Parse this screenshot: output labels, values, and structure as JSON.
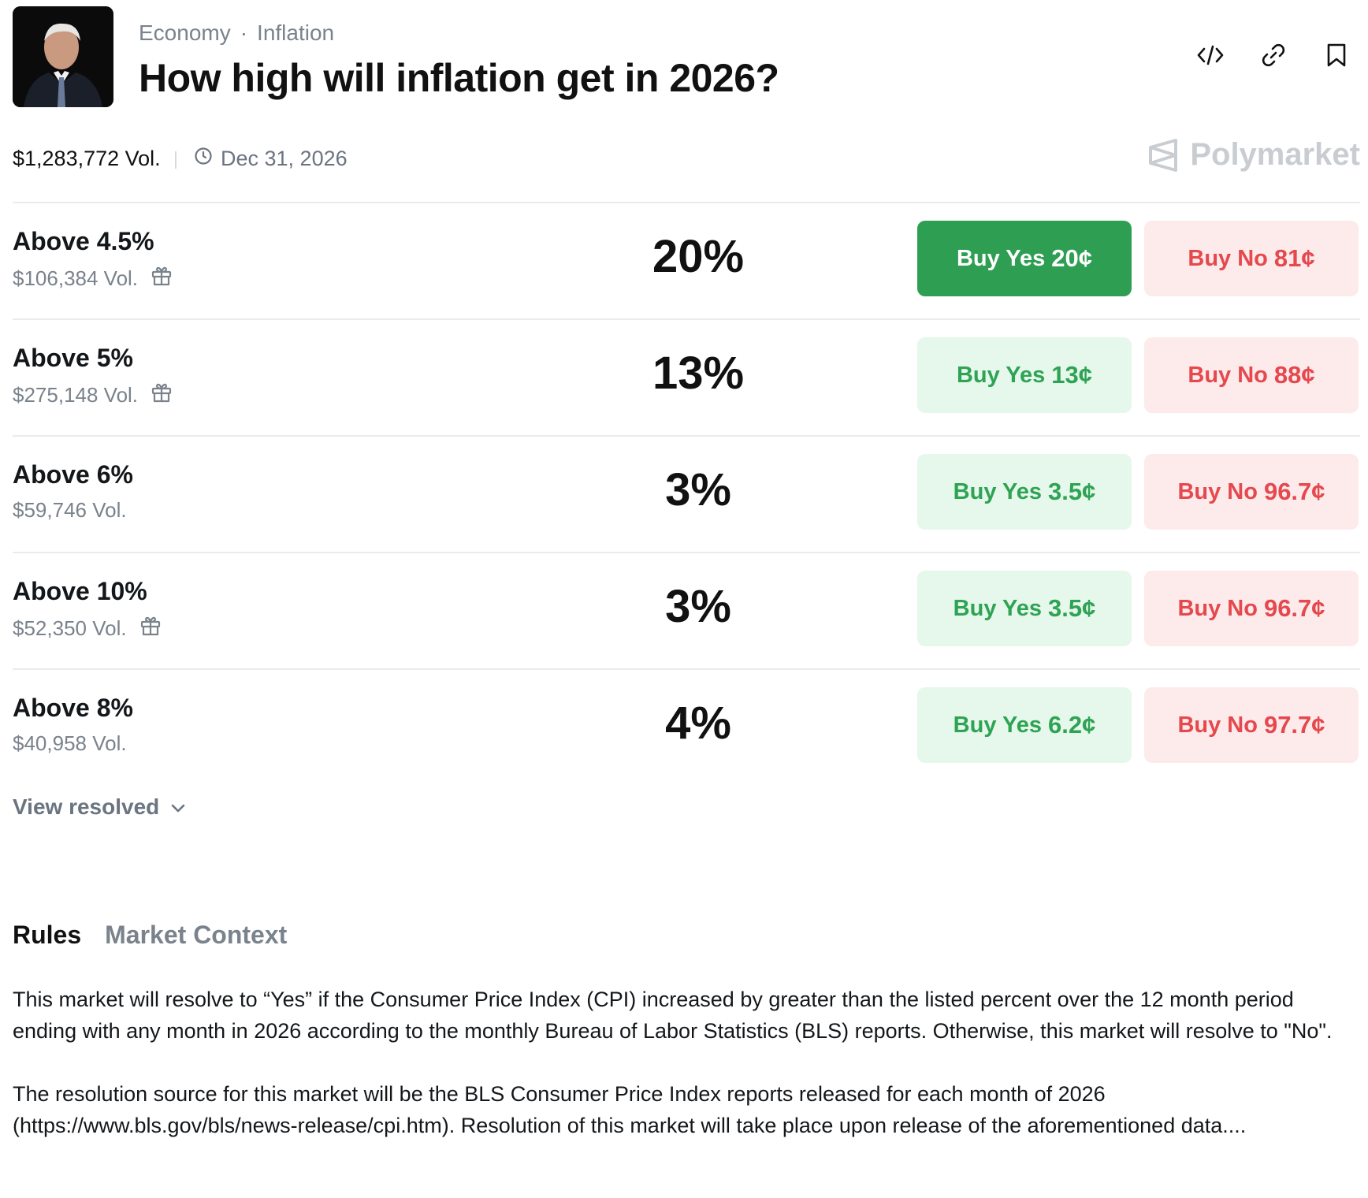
{
  "breadcrumb": {
    "category": "Economy",
    "separator": "·",
    "subcategory": "Inflation"
  },
  "title": "How high will inflation get in 2026?",
  "meta": {
    "volume": "$1,283,772 Vol.",
    "end_date": "Dec 31, 2026",
    "brand": "Polymarket"
  },
  "header_icons": [
    "embed-icon",
    "link-icon",
    "bookmark-icon"
  ],
  "outcomes": [
    {
      "label": "Above 4.5%",
      "volume": "$106,384 Vol.",
      "gift": true,
      "percent": "20%",
      "yes_label": "Buy Yes",
      "yes_price": "20¢",
      "no_label": "Buy No",
      "no_price": "81¢",
      "yes_active": true
    },
    {
      "label": "Above 5%",
      "volume": "$275,148 Vol.",
      "gift": true,
      "percent": "13%",
      "yes_label": "Buy Yes",
      "yes_price": "13¢",
      "no_label": "Buy No",
      "no_price": "88¢",
      "yes_active": false
    },
    {
      "label": "Above 6%",
      "volume": "$59,746 Vol.",
      "gift": false,
      "percent": "3%",
      "yes_label": "Buy Yes",
      "yes_price": "3.5¢",
      "no_label": "Buy No",
      "no_price": "96.7¢",
      "yes_active": false
    },
    {
      "label": "Above 10%",
      "volume": "$52,350 Vol.",
      "gift": true,
      "percent": "3%",
      "yes_label": "Buy Yes",
      "yes_price": "3.5¢",
      "no_label": "Buy No",
      "no_price": "96.7¢",
      "yes_active": false
    },
    {
      "label": "Above 8%",
      "volume": "$40,958 Vol.",
      "gift": false,
      "percent": "4%",
      "yes_label": "Buy Yes",
      "yes_price": "6.2¢",
      "no_label": "Buy No",
      "no_price": "97.7¢",
      "yes_active": false
    }
  ],
  "view_resolved": "View resolved",
  "tabs": {
    "rules": "Rules",
    "context": "Market Context"
  },
  "rules": {
    "p1": "This market will resolve to “Yes” if the Consumer Price Index (CPI) increased by greater than the listed percent over the 12 month period ending with any month in 2026 according to the monthly Bureau of Labor Statistics (BLS) reports. Otherwise, this market will resolve to \"No\".",
    "p2": "The resolution source for this market will be the BLS Consumer Price Index reports released for each month of 2026 (https://www.bls.gov/bls/news-release/cpi.htm). Resolution of this market will take place upon release of the aforementioned data...."
  },
  "colors": {
    "yes_active": "#2e9e53",
    "yes_soft": "#e6f7ec",
    "yes_text": "#2fa354",
    "no_soft": "#fdebec",
    "no_text": "#e5484d"
  }
}
